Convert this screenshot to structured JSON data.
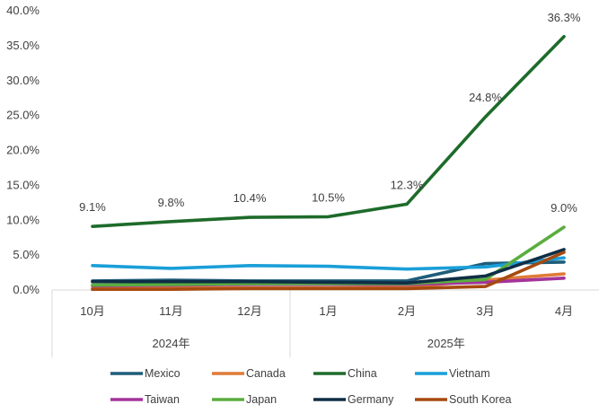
{
  "chart_data": {
    "type": "line",
    "title": "",
    "xlabel": "",
    "ylabel": "",
    "ylim": [
      0,
      40
    ],
    "y_ticks": [
      "0.0%",
      "5.0%",
      "10.0%",
      "15.0%",
      "20.0%",
      "25.0%",
      "30.0%",
      "35.0%",
      "40.0%"
    ],
    "categories": [
      "10月",
      "11月",
      "12月",
      "1月",
      "2月",
      "3月",
      "4月"
    ],
    "groups": [
      {
        "label": "2024年",
        "span": [
          0,
          2
        ]
      },
      {
        "label": "2025年",
        "span": [
          3,
          6
        ]
      }
    ],
    "series": [
      {
        "name": "Mexico",
        "color": "#1f5c7a",
        "values": [
          1.3,
          1.4,
          1.3,
          1.3,
          1.3,
          3.8,
          4.0
        ]
      },
      {
        "name": "Canada",
        "color": "#e07b39",
        "values": [
          0.2,
          0.3,
          0.3,
          0.3,
          0.4,
          1.4,
          2.3
        ]
      },
      {
        "name": "China",
        "color": "#1e6b2b",
        "values": [
          9.1,
          9.8,
          10.4,
          10.5,
          12.3,
          24.8,
          36.3
        ],
        "data_labels": [
          "9.1%",
          "9.8%",
          "10.4%",
          "10.5%",
          "12.3%",
          "24.8%",
          "36.3%"
        ]
      },
      {
        "name": "Vietnam",
        "color": "#1a9fd8",
        "values": [
          3.5,
          3.1,
          3.5,
          3.4,
          3.0,
          3.3,
          4.6
        ]
      },
      {
        "name": "Taiwan",
        "color": "#a3339a",
        "values": [
          0.6,
          0.7,
          0.8,
          0.8,
          0.8,
          1.1,
          1.7
        ]
      },
      {
        "name": "Japan",
        "color": "#5aad3f",
        "values": [
          0.7,
          0.8,
          0.9,
          0.9,
          0.9,
          1.5,
          9.0
        ],
        "data_labels": [
          null,
          null,
          null,
          null,
          null,
          null,
          "9.0%"
        ]
      },
      {
        "name": "Germany",
        "color": "#0f2e46",
        "values": [
          1.2,
          1.2,
          1.2,
          1.1,
          1.0,
          2.0,
          5.8
        ]
      },
      {
        "name": "South Korea",
        "color": "#a64a10",
        "values": [
          0.1,
          0.1,
          0.2,
          0.2,
          0.2,
          0.5,
          5.4
        ]
      }
    ],
    "legend_position": "bottom",
    "grid": false
  }
}
